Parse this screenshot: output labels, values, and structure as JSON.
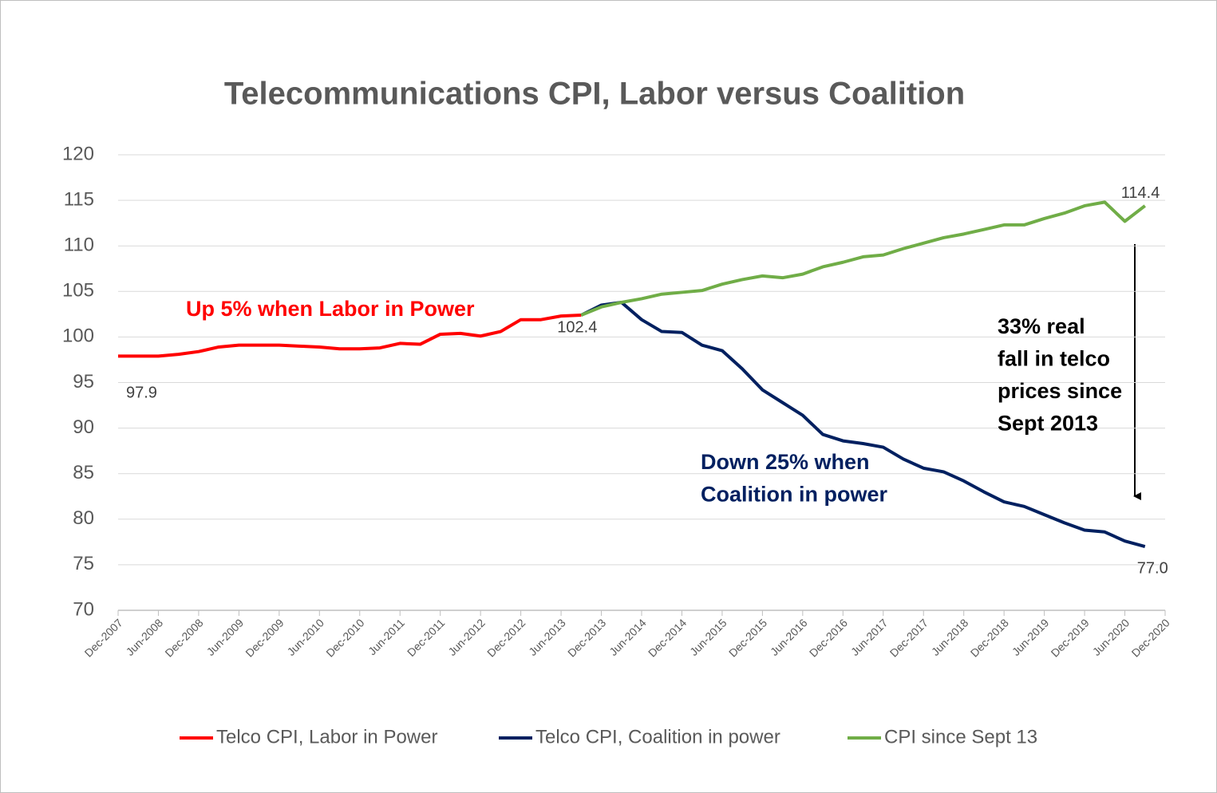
{
  "chart_data": {
    "type": "line",
    "title": "Telecommunications CPI, Labor versus Coalition",
    "categories": [
      "Dec-2007",
      null,
      "Jun-2008",
      null,
      "Dec-2008",
      null,
      "Jun-2009",
      null,
      "Dec-2009",
      null,
      "Jun-2010",
      null,
      "Dec-2010",
      null,
      "Jun-2011",
      null,
      "Dec-2011",
      null,
      "Jun-2012",
      null,
      "Dec-2012",
      null,
      "Jun-2013",
      null,
      "Dec-2013",
      null,
      "Jun-2014",
      null,
      "Dec-2014",
      null,
      "Jun-2015",
      null,
      "Dec-2015",
      null,
      "Jun-2016",
      null,
      "Dec-2016",
      null,
      "Jun-2017",
      null,
      "Dec-2017",
      null,
      "Jun-2018",
      null,
      "Dec-2018",
      null,
      "Jun-2019",
      null,
      "Dec-2019",
      null,
      "Jun-2020",
      null,
      "Dec-2020"
    ],
    "series": [
      {
        "name": "Telco CPI, Labor in Power",
        "color": "#ff0000",
        "values": [
          97.9,
          97.9,
          97.9,
          98.1,
          98.4,
          98.9,
          99.1,
          99.1,
          99.1,
          99.0,
          98.9,
          98.7,
          98.7,
          98.8,
          99.3,
          99.2,
          100.3,
          100.4,
          100.1,
          100.6,
          101.9,
          101.9,
          102.3,
          102.4,
          null,
          null,
          null,
          null,
          null,
          null,
          null,
          null,
          null,
          null,
          null,
          null,
          null,
          null,
          null,
          null,
          null,
          null,
          null,
          null,
          null,
          null,
          null,
          null,
          null,
          null,
          null,
          null,
          null
        ],
        "value_labels": [
          "97.9",
          null,
          null,
          null,
          null,
          null,
          null,
          null,
          null,
          null,
          null,
          null,
          null,
          null,
          null,
          null,
          null,
          null,
          null,
          null,
          null,
          null,
          null,
          "102.4",
          null,
          null,
          null,
          null,
          null,
          null,
          null,
          null,
          null,
          null,
          null,
          null,
          null,
          null,
          null,
          null,
          null,
          null,
          null,
          null,
          null,
          null,
          null,
          null,
          null,
          null,
          null,
          null,
          null
        ]
      },
      {
        "name": "Telco CPI, Coalition in power",
        "color": "#002060",
        "values": [
          null,
          null,
          null,
          null,
          null,
          null,
          null,
          null,
          null,
          null,
          null,
          null,
          null,
          null,
          null,
          null,
          null,
          null,
          null,
          null,
          null,
          null,
          null,
          102.4,
          103.5,
          103.8,
          101.9,
          100.6,
          100.5,
          99.1,
          98.5,
          96.5,
          94.2,
          92.8,
          91.4,
          89.3,
          88.6,
          88.3,
          87.9,
          86.6,
          85.6,
          85.2,
          84.2,
          83.0,
          81.9,
          81.4,
          80.5,
          79.6,
          78.8,
          78.6,
          77.6,
          77.0,
          null
        ],
        "value_labels": [
          null,
          null,
          null,
          null,
          null,
          null,
          null,
          null,
          null,
          null,
          null,
          null,
          null,
          null,
          null,
          null,
          null,
          null,
          null,
          null,
          null,
          null,
          null,
          null,
          null,
          null,
          null,
          null,
          null,
          null,
          null,
          null,
          null,
          null,
          null,
          null,
          null,
          null,
          null,
          null,
          null,
          null,
          null,
          null,
          null,
          null,
          null,
          null,
          null,
          null,
          null,
          "77.0",
          null
        ]
      },
      {
        "name": "CPI since Sept 13",
        "color": "#70ad47",
        "values": [
          null,
          null,
          null,
          null,
          null,
          null,
          null,
          null,
          null,
          null,
          null,
          null,
          null,
          null,
          null,
          null,
          null,
          null,
          null,
          null,
          null,
          null,
          null,
          102.4,
          103.3,
          103.8,
          104.2,
          104.7,
          104.9,
          105.1,
          105.8,
          106.3,
          106.7,
          106.5,
          106.9,
          107.7,
          108.2,
          108.8,
          109.0,
          109.7,
          110.3,
          110.9,
          111.3,
          111.8,
          112.3,
          112.3,
          113.0,
          113.6,
          114.4,
          114.8,
          112.7,
          114.4,
          null
        ],
        "value_labels": [
          null,
          null,
          null,
          null,
          null,
          null,
          null,
          null,
          null,
          null,
          null,
          null,
          null,
          null,
          null,
          null,
          null,
          null,
          null,
          null,
          null,
          null,
          null,
          null,
          null,
          null,
          null,
          null,
          null,
          null,
          null,
          null,
          null,
          null,
          null,
          null,
          null,
          null,
          null,
          null,
          null,
          null,
          null,
          null,
          null,
          null,
          null,
          null,
          null,
          null,
          null,
          "114.4",
          null
        ]
      }
    ],
    "ylim": [
      70,
      120
    ],
    "yticks": [
      70,
      75,
      80,
      85,
      90,
      95,
      100,
      105,
      110,
      115,
      120
    ],
    "grid": true,
    "legend": "bottom",
    "annotations": [
      {
        "lines": [
          "Up 5% when Labor in Power"
        ],
        "color": "#ff0000"
      },
      {
        "lines": [
          "Down 25% when",
          "Coalition in power"
        ],
        "color": "#002060"
      },
      {
        "lines": [
          "33% real",
          "fall in telco",
          "prices since",
          "Sept 2013"
        ],
        "color": "#000000"
      }
    ]
  }
}
